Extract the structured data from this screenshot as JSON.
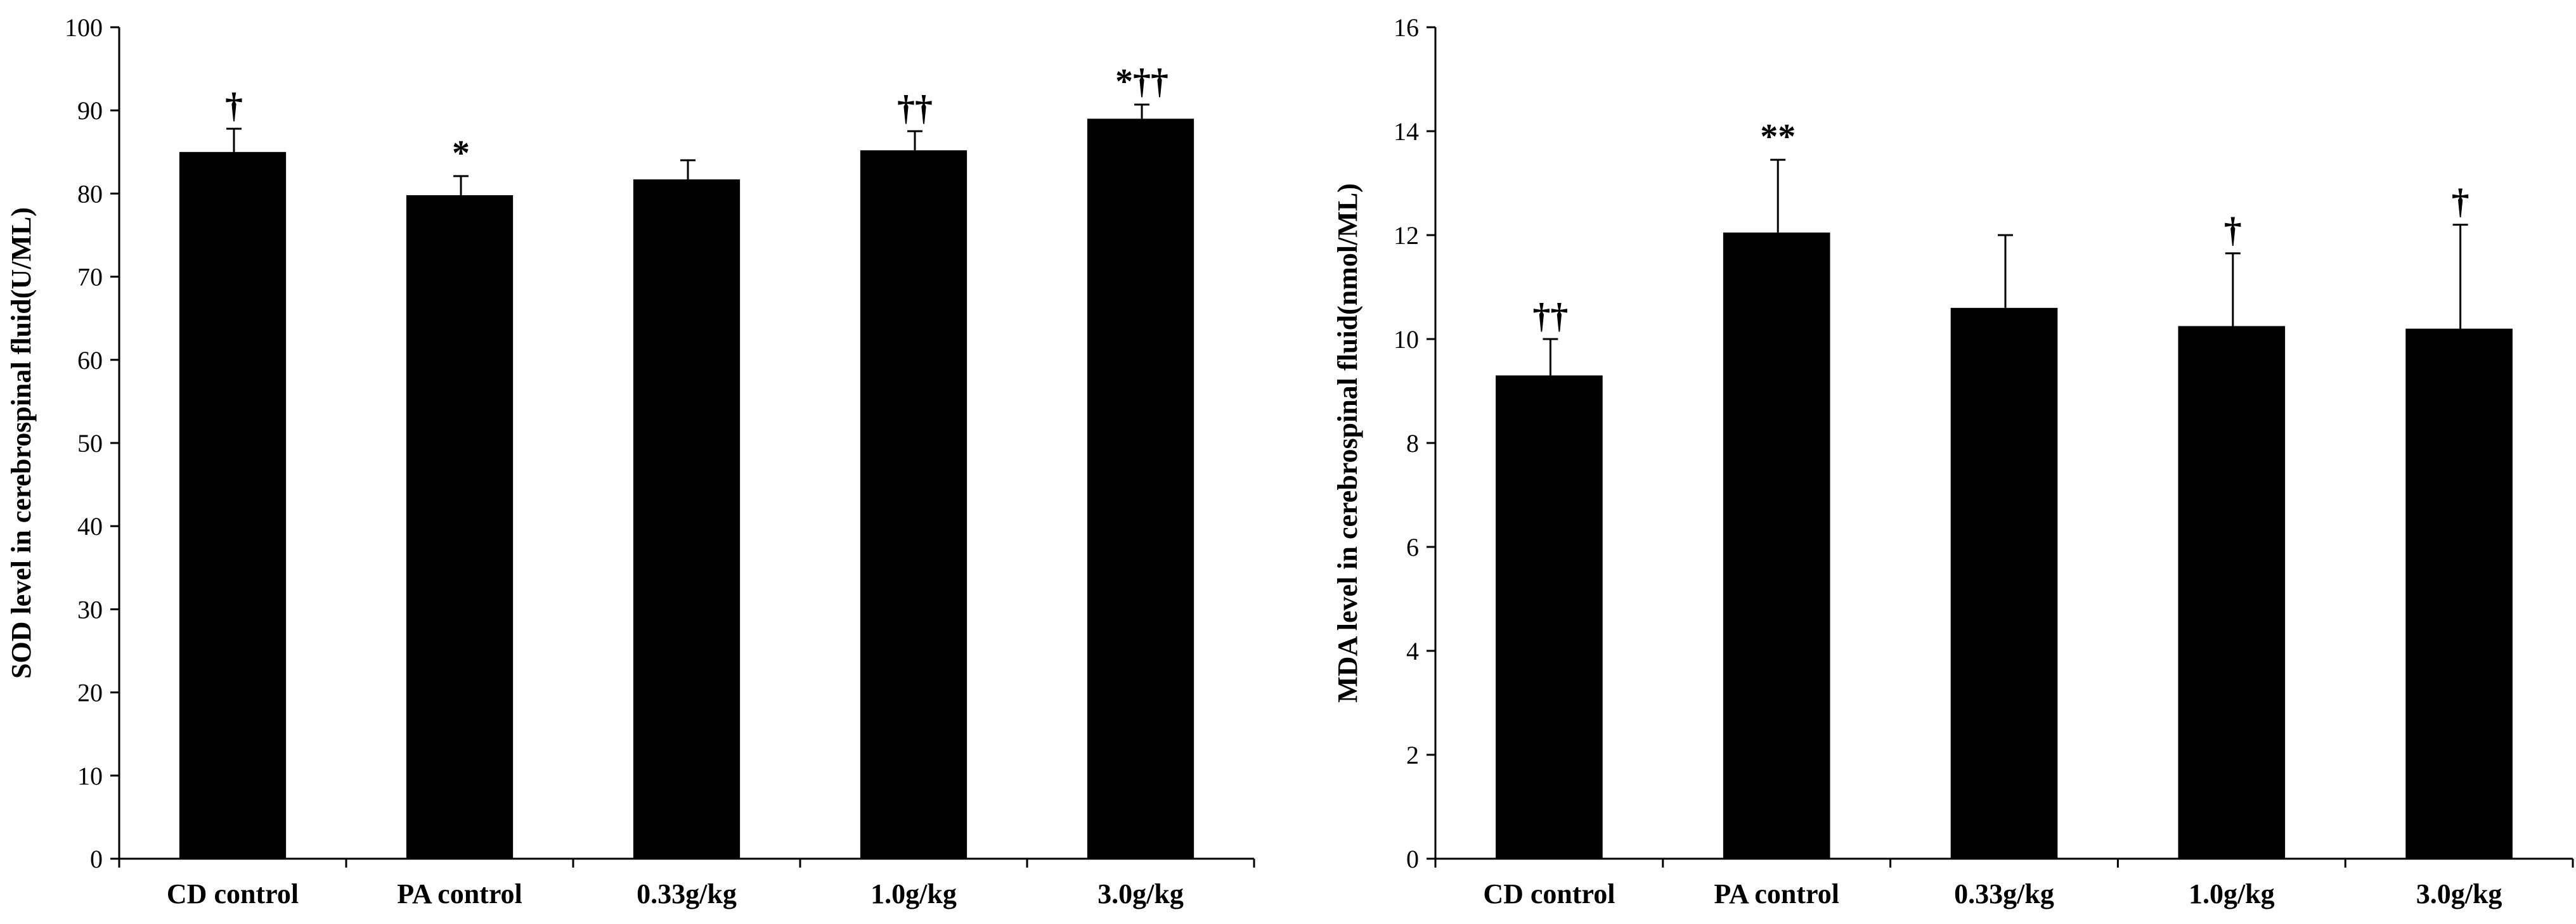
{
  "chart_data": [
    {
      "type": "bar",
      "title": "",
      "xlabel": "",
      "ylabel": "SOD level in cerebrospinal fluid(U/ML)",
      "ylim": [
        0,
        100
      ],
      "ytick_step": 10,
      "categories": [
        "CD control",
        "PA control",
        "0.33g/kg",
        "1.0g/kg",
        "3.0g/kg"
      ],
      "values": [
        85.0,
        79.8,
        81.7,
        85.2,
        89.0
      ],
      "errors": [
        2.8,
        2.3,
        2.3,
        2.3,
        1.7
      ],
      "annotations": [
        "†",
        "*",
        "",
        "††",
        "*††"
      ],
      "colors": {
        "bar": "#000000",
        "axis": "#000000"
      }
    },
    {
      "type": "bar",
      "title": "",
      "xlabel": "",
      "ylabel": "MDA level in cerebrospinal fluid(nmol/ML)",
      "ylim": [
        0,
        16
      ],
      "ytick_step": 2,
      "categories": [
        "CD control",
        "PA control",
        "0.33g/kg",
        "1.0g/kg",
        "3.0g/kg"
      ],
      "values": [
        9.3,
        12.05,
        10.6,
        10.25,
        10.2
      ],
      "errors": [
        0.7,
        1.4,
        1.4,
        1.4,
        2.0
      ],
      "annotations": [
        "††",
        "**",
        "",
        "†",
        "†"
      ],
      "colors": {
        "bar": "#000000",
        "axis": "#000000"
      }
    }
  ]
}
